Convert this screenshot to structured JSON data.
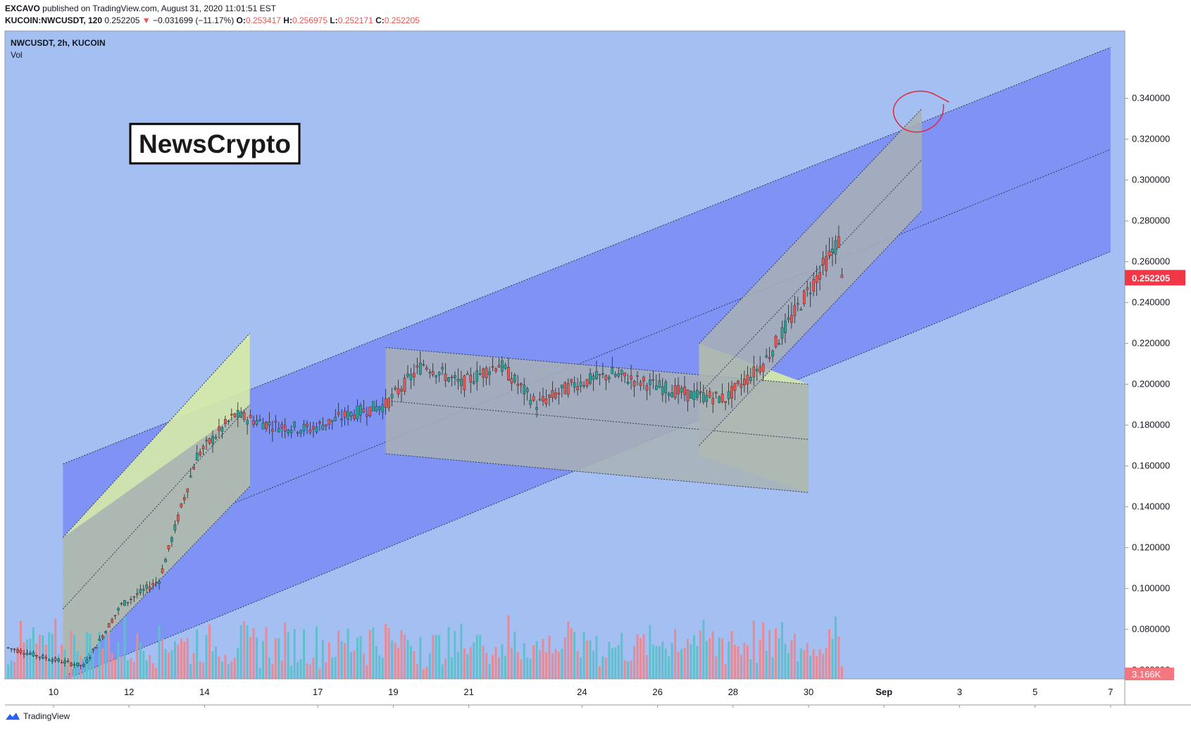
{
  "header": {
    "author": "EXCAVO",
    "published_text": "published on TradingView.com, August 31, 2020 11:01:51 EST",
    "symbol_full": "KUCOIN:NWCUSDT, 120",
    "last_price": "0.252205",
    "change_arrow": "▼",
    "change": "−0.031699 (−11.17%)",
    "open_label": "O:",
    "open": "0.253417",
    "high_label": "H:",
    "high": "0.256975",
    "low_label": "L:",
    "low": "0.252171",
    "close_label": "C:",
    "close": "0.252205"
  },
  "pane": {
    "symbol_title": "NWCUSDT, 2h, KUCOIN",
    "volume_label": "Vol",
    "price_badge": "0.252205",
    "volume_badge": "3.166K"
  },
  "watermark": {
    "text": "NewsCrypto"
  },
  "footer": {
    "brand": "TradingView"
  },
  "colors": {
    "background": "#a4c0f2",
    "channel_fill": "#7f93f5",
    "gray_channel": "#a8b0b4",
    "yellow_zone": "#d6eba6",
    "up": "#26a69a",
    "down": "#ef5350",
    "vol_up": "#5fbfcc",
    "vol_down": "#e88a96",
    "annotation": "#e0283a"
  },
  "chart_data": {
    "type": "candlestick",
    "symbol": "NWCUSDT",
    "exchange": "KUCOIN",
    "interval": "2h",
    "y_axis_ticks": [
      "0.060000",
      "0.080000",
      "0.100000",
      "0.120000",
      "0.140000",
      "0.160000",
      "0.180000",
      "0.200000",
      "0.220000",
      "0.240000",
      "0.260000",
      "0.280000",
      "0.300000",
      "0.320000",
      "0.340000"
    ],
    "x_axis_labels": [
      "10",
      "12",
      "14",
      "17",
      "19",
      "21",
      "24",
      "26",
      "28",
      "30",
      "Sep",
      "3",
      "5",
      "7"
    ],
    "price_range": [
      0.043,
      0.361
    ],
    "ohlc_daily_approx": [
      {
        "date": "Aug 9",
        "open": 0.071,
        "high": 0.072,
        "low": 0.063,
        "close": 0.066
      },
      {
        "date": "Aug 10",
        "open": 0.066,
        "high": 0.069,
        "low": 0.058,
        "close": 0.062
      },
      {
        "date": "Aug 11",
        "open": 0.062,
        "high": 0.12,
        "low": 0.06,
        "close": 0.092
      },
      {
        "date": "Aug 12",
        "open": 0.092,
        "high": 0.11,
        "low": 0.088,
        "close": 0.104
      },
      {
        "date": "Aug 13",
        "open": 0.104,
        "high": 0.18,
        "low": 0.1,
        "close": 0.165
      },
      {
        "date": "Aug 14",
        "open": 0.165,
        "high": 0.19,
        "low": 0.145,
        "close": 0.185
      },
      {
        "date": "Aug 15",
        "open": 0.185,
        "high": 0.19,
        "low": 0.15,
        "close": 0.18
      },
      {
        "date": "Aug 16",
        "open": 0.18,
        "high": 0.182,
        "low": 0.16,
        "close": 0.178
      },
      {
        "date": "Aug 17",
        "open": 0.178,
        "high": 0.19,
        "low": 0.17,
        "close": 0.185
      },
      {
        "date": "Aug 18",
        "open": 0.185,
        "high": 0.2,
        "low": 0.18,
        "close": 0.19
      },
      {
        "date": "Aug 19",
        "open": 0.19,
        "high": 0.22,
        "low": 0.185,
        "close": 0.21
      },
      {
        "date": "Aug 20",
        "open": 0.21,
        "high": 0.218,
        "low": 0.185,
        "close": 0.2
      },
      {
        "date": "Aug 21",
        "open": 0.2,
        "high": 0.215,
        "low": 0.19,
        "close": 0.21
      },
      {
        "date": "Aug 22",
        "open": 0.21,
        "high": 0.212,
        "low": 0.16,
        "close": 0.19
      },
      {
        "date": "Aug 23",
        "open": 0.19,
        "high": 0.215,
        "low": 0.172,
        "close": 0.2
      },
      {
        "date": "Aug 24",
        "open": 0.2,
        "high": 0.208,
        "low": 0.195,
        "close": 0.205
      },
      {
        "date": "Aug 25",
        "open": 0.205,
        "high": 0.208,
        "low": 0.195,
        "close": 0.2
      },
      {
        "date": "Aug 26",
        "open": 0.2,
        "high": 0.205,
        "low": 0.188,
        "close": 0.195
      },
      {
        "date": "Aug 27",
        "open": 0.195,
        "high": 0.2,
        "low": 0.18,
        "close": 0.193
      },
      {
        "date": "Aug 28",
        "open": 0.193,
        "high": 0.215,
        "low": 0.19,
        "close": 0.21
      },
      {
        "date": "Aug 29",
        "open": 0.21,
        "high": 0.245,
        "low": 0.205,
        "close": 0.24
      },
      {
        "date": "Aug 30",
        "open": 0.24,
        "high": 0.285,
        "low": 0.235,
        "close": 0.27
      },
      {
        "date": "Aug 31",
        "open": 0.27,
        "high": 0.285,
        "low": 0.247,
        "close": 0.252
      }
    ],
    "annotations": [
      {
        "kind": "rising parallel channel (blue)",
        "points": [
          [
            "Aug 10",
            0.161
          ],
          [
            "Sep 7",
            0.365
          ]
        ],
        "lower": [
          [
            "Aug 10",
            0.055
          ],
          [
            "Sep 7",
            0.265
          ]
        ]
      },
      {
        "kind": "rising channel (gray)",
        "from": "Aug 10",
        "to": "Aug 15",
        "range": [
          0.055,
          0.19
        ]
      },
      {
        "kind": "descending channel (gray)",
        "from": "Aug 19",
        "to": "Aug 29",
        "top": [
          0.218,
          0.199
        ],
        "bottom": [
          0.166,
          0.146
        ]
      },
      {
        "kind": "rising channel (gray)",
        "from": "Aug 27",
        "to": "Sep 2",
        "range": [
          0.165,
          0.335
        ]
      },
      {
        "kind": "circle marker",
        "at": [
          "Sep 2",
          0.333
        ]
      }
    ]
  }
}
